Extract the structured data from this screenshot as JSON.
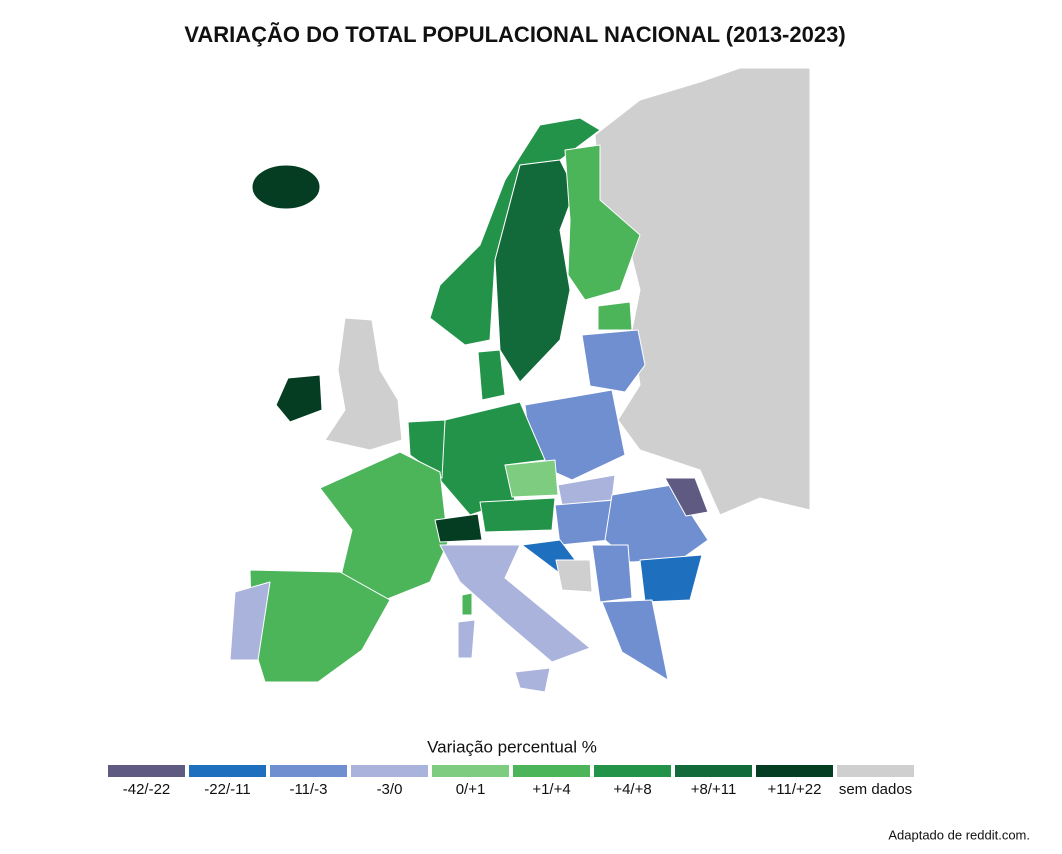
{
  "title": "VARIAÇÃO DO TOTAL POPULACIONAL NACIONAL (2013-2023)",
  "legend": {
    "title": "Variação percentual %",
    "items": [
      {
        "label": "-42/-22",
        "color": "#5e5a82"
      },
      {
        "label": "-22/-11",
        "color": "#1f6fbf"
      },
      {
        "label": "-11/-3",
        "color": "#6f8fd0"
      },
      {
        "label": "-3/0",
        "color": "#a9b3dc"
      },
      {
        "label": "0/+1",
        "color": "#7dcc7f"
      },
      {
        "label": "+1/+4",
        "color": "#4cb55a"
      },
      {
        "label": "+4/+8",
        "color": "#23934a"
      },
      {
        "label": "+8/+11",
        "color": "#12693a"
      },
      {
        "label": "+11/+22",
        "color": "#053d22"
      },
      {
        "label": "sem dados",
        "color": "#cfcfcf"
      }
    ]
  },
  "source": "Adaptado de reddit.com."
}
